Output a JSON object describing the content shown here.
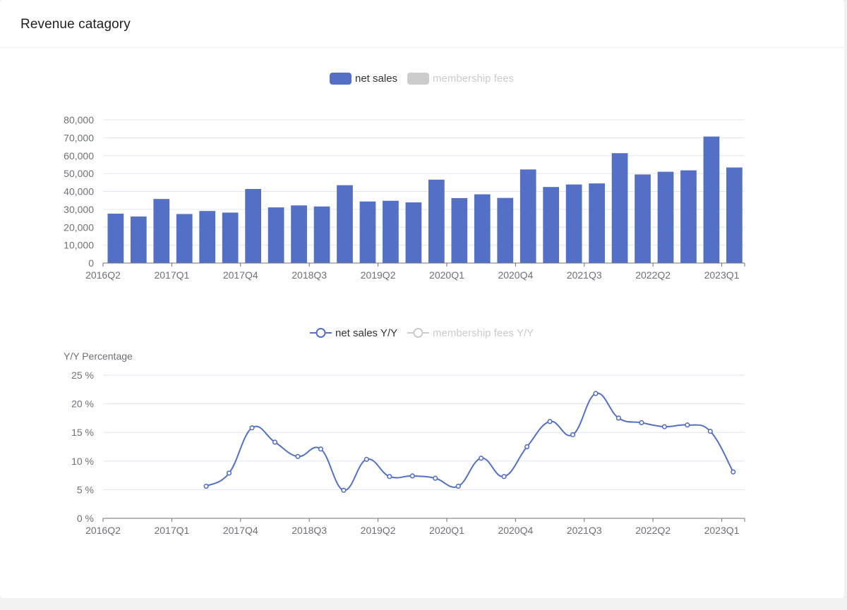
{
  "card": {
    "title": "Revenue catagory"
  },
  "colors": {
    "primary": "#5470c6",
    "inactive": "#cccccc",
    "grid": "#e0e6f1",
    "axis": "#6e7079"
  },
  "chart_data": [
    {
      "type": "bar",
      "legend": [
        {
          "name": "net sales",
          "active": true
        },
        {
          "name": "membership fees",
          "active": false
        }
      ],
      "categories": [
        "2016Q2",
        "2016Q3",
        "2016Q4",
        "2017Q1",
        "2017Q2",
        "2017Q3",
        "2017Q4",
        "2018Q1",
        "2018Q2",
        "2018Q3",
        "2018Q4",
        "2019Q1",
        "2019Q2",
        "2019Q3",
        "2019Q4",
        "2020Q1",
        "2020Q2",
        "2020Q3",
        "2020Q4",
        "2021Q1",
        "2021Q2",
        "2021Q3",
        "2021Q4",
        "2022Q1",
        "2022Q2",
        "2022Q3",
        "2022Q4",
        "2023Q1"
      ],
      "x_tick_labels": [
        "2016Q2",
        "2017Q1",
        "2017Q4",
        "2018Q3",
        "2019Q2",
        "2020Q1",
        "2020Q4",
        "2021Q3",
        "2022Q2",
        "2023Q1"
      ],
      "y_tick_labels": [
        "0",
        "10,000",
        "20,000",
        "30,000",
        "40,000",
        "50,000",
        "60,000",
        "70,000",
        "80,000"
      ],
      "ylim": [
        0,
        80000
      ],
      "series": [
        {
          "name": "net sales",
          "values": [
            27600,
            26000,
            35800,
            27400,
            29100,
            28200,
            41400,
            31100,
            32200,
            31600,
            43500,
            34400,
            34800,
            33900,
            46600,
            36300,
            38400,
            36400,
            52300,
            42500,
            43900,
            44500,
            61400,
            49500,
            51000,
            51800,
            70700,
            53400
          ]
        }
      ]
    },
    {
      "type": "line",
      "legend": [
        {
          "name": "net sales Y/Y",
          "active": true
        },
        {
          "name": "membership fees Y/Y",
          "active": false
        }
      ],
      "ylabel": "Y/Y Percentage",
      "categories": [
        "2016Q2",
        "2016Q3",
        "2016Q4",
        "2017Q1",
        "2017Q2",
        "2017Q3",
        "2017Q4",
        "2018Q1",
        "2018Q2",
        "2018Q3",
        "2018Q4",
        "2019Q1",
        "2019Q2",
        "2019Q3",
        "2019Q4",
        "2020Q1",
        "2020Q2",
        "2020Q3",
        "2020Q4",
        "2021Q1",
        "2021Q2",
        "2021Q3",
        "2021Q4",
        "2022Q1",
        "2022Q2",
        "2022Q3",
        "2022Q4",
        "2023Q1"
      ],
      "x_tick_labels": [
        "2016Q2",
        "2017Q1",
        "2017Q4",
        "2018Q3",
        "2019Q2",
        "2020Q1",
        "2020Q4",
        "2021Q3",
        "2022Q2",
        "2023Q1"
      ],
      "y_tick_labels": [
        "0 %",
        "5 %",
        "10 %",
        "15 %",
        "20 %",
        "25 %"
      ],
      "ylim": [
        0,
        25
      ],
      "series": [
        {
          "name": "net sales Y/Y",
          "values": [
            null,
            null,
            null,
            null,
            5.6,
            7.9,
            15.8,
            13.3,
            10.8,
            12.1,
            4.9,
            10.3,
            7.3,
            7.4,
            7.0,
            5.6,
            10.5,
            7.3,
            12.5,
            16.9,
            14.6,
            21.8,
            17.5,
            16.7,
            16.0,
            16.3,
            15.2,
            8.1
          ]
        }
      ]
    }
  ]
}
